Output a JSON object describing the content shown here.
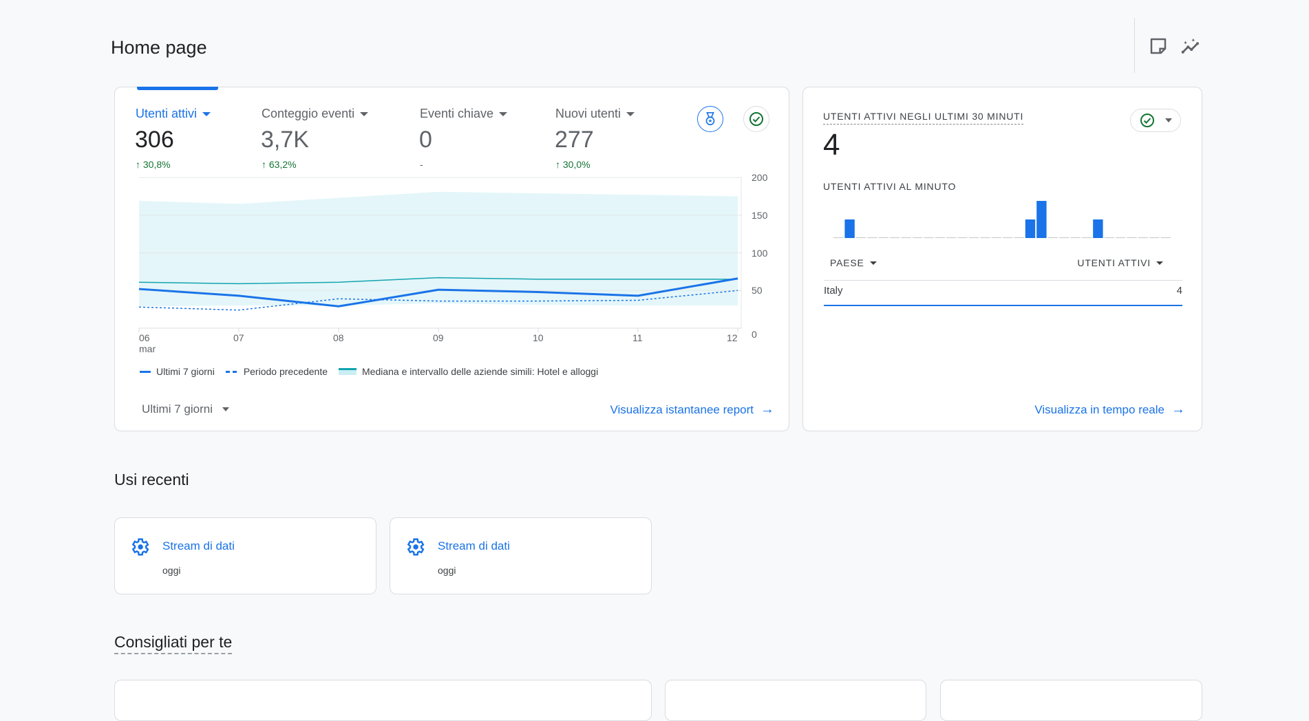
{
  "page": {
    "title": "Home page",
    "notes_icon": "sticky-note-icon",
    "insights_icon": "auto-insights-icon"
  },
  "overview": {
    "metrics": [
      {
        "label": "Utenti attivi",
        "value": "306",
        "change": "30,8%",
        "direction": "up",
        "active": true
      },
      {
        "label": "Conteggio eventi",
        "value": "3,7K",
        "change": "63,2%",
        "direction": "up",
        "active": false
      },
      {
        "label": "Eventi chiave",
        "value": "0",
        "change": "-",
        "direction": "none",
        "active": false
      },
      {
        "label": "Nuovi utenti",
        "value": "277",
        "change": "30,0%",
        "direction": "up",
        "active": false
      }
    ],
    "benchmark_icon": "medal-icon",
    "status_icon": "check-circle-icon",
    "date_range": "Ultimi 7 giorni",
    "link": "Visualizza istantanee report"
  },
  "chart_data": {
    "type": "line",
    "x": [
      "06",
      "07",
      "08",
      "09",
      "10",
      "11",
      "12"
    ],
    "x_sublabel": "mar",
    "ylim": [
      0,
      200
    ],
    "yticks": [
      "0",
      "50",
      "100",
      "150",
      "200"
    ],
    "grid": true,
    "legend_position": "bottom",
    "series": [
      {
        "name": "Ultimi 7 giorni",
        "style": "solid",
        "color": "#1a73e8",
        "values": [
          52,
          43,
          29,
          51,
          48,
          43,
          66
        ]
      },
      {
        "name": "Periodo precedente",
        "style": "dashed",
        "color": "#1a73e8",
        "values": [
          28,
          24,
          39,
          36,
          36,
          37,
          50
        ]
      },
      {
        "name": "Mediana e intervallo delle aziende simili: Hotel e alloggi",
        "style": "band",
        "color": "#12a4af",
        "values": [
          61,
          59,
          61,
          67,
          65,
          65,
          65
        ],
        "band_low": [
          29,
          30,
          30,
          33,
          31,
          30,
          30
        ],
        "band_high": [
          169,
          165,
          173,
          181,
          179,
          177,
          175
        ]
      }
    ]
  },
  "realtime": {
    "title": "UTENTI ATTIVI NEGLI ULTIMI 30 MINUTI",
    "value": "4",
    "per_minute_title": "UTENTI ATTIVI AL MINUTO",
    "per_minute": [
      0,
      1,
      0,
      0,
      0,
      0,
      0,
      0,
      0,
      0,
      0,
      0,
      0,
      0,
      0,
      0,
      0,
      1,
      2,
      0,
      0,
      0,
      0,
      1,
      0,
      0,
      0,
      0,
      0,
      0
    ],
    "columns": [
      "PAESE",
      "UTENTI ATTIVI"
    ],
    "rows": [
      {
        "country": "Italy",
        "users": "4"
      }
    ],
    "link": "Visualizza in tempo reale"
  },
  "recent": {
    "title": "Usi recenti",
    "items": [
      {
        "name": "Stream di dati",
        "when": "oggi"
      },
      {
        "name": "Stream di dati",
        "when": "oggi"
      }
    ]
  },
  "recommended": {
    "title": "Consigliati per te"
  }
}
